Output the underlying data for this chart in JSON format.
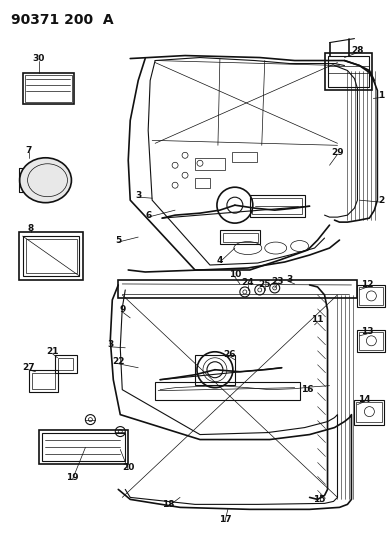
{
  "title": "90371 200  A",
  "bg_color": "#ffffff",
  "fig_width": 3.92,
  "fig_height": 5.33,
  "dpi": 100,
  "line_color": "#111111",
  "label_fontsize": 6.5,
  "title_fontsize": 10
}
